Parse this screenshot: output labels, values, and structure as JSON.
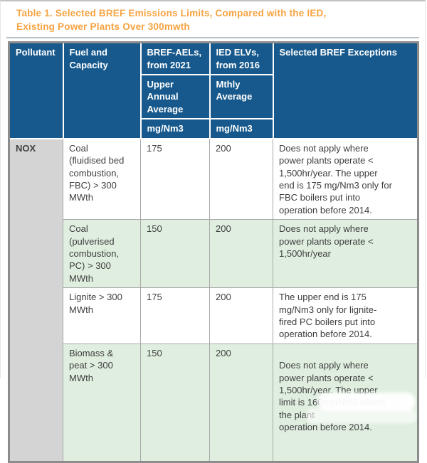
{
  "title": {
    "line1": "Table 1. Selected BREF Emissions Limits, Compared with the IED,",
    "line2": "Existing Power Plants Over 300mwth"
  },
  "table": {
    "headers": {
      "pollutant": "Pollutant",
      "fuel": "Fuel and\nCapacity",
      "bref": {
        "top": "BREF-AELs,\nfrom 2021",
        "mid": "Upper\nAnnual\nAverage",
        "unit": "mg/Nm3"
      },
      "ied": {
        "top": "IED ELVs,\nfrom 2016",
        "mid": "Mthly\nAverage",
        "unit": "mg/Nm3"
      },
      "exceptions": "Selected BREF Exceptions"
    },
    "pollutant_group": "NOX",
    "rows": [
      {
        "fuel": "Coal\n(fluidised bed\ncombustion,\nFBC) > 300\nMWth",
        "bref": "175",
        "ied": "200",
        "exception": "Does not apply where\npower plants operate <\n1,500hr/year. The upper\nend is 175 mg/Nm3 only for\nFBC boilers put into\noperation before 2014."
      },
      {
        "fuel": "Coal\n(pulverised\ncombustion,\nPC) > 300\nMWth",
        "bref": "150",
        "ied": "200",
        "exception": "Does not apply where\npower plants operate <\n1,500hr/year"
      },
      {
        "fuel": "Lignite > 300\nMWth",
        "bref": "175",
        "ied": "200",
        "exception": "The upper end is 175\nmg/Nm3 only for lignite-\nfired PC boilers put into\noperation before 2014."
      },
      {
        "fuel": "Biomass &\npeat > 300\nMWth",
        "bref": "150",
        "ied": "200",
        "exception": "Does not apply where\npower plants operate <\n1,500hr/year. The upper\nlimit is 160mg/Nm3 where\nthe plant\noperation before 2014."
      }
    ],
    "colors": {
      "title_orange": "#f7a341",
      "header_blue": "#17598c",
      "pollutant_col_gray": "#d4d4d4",
      "alt_row_green": "#dfeedf",
      "border_gray": "#a8a8a8"
    }
  }
}
